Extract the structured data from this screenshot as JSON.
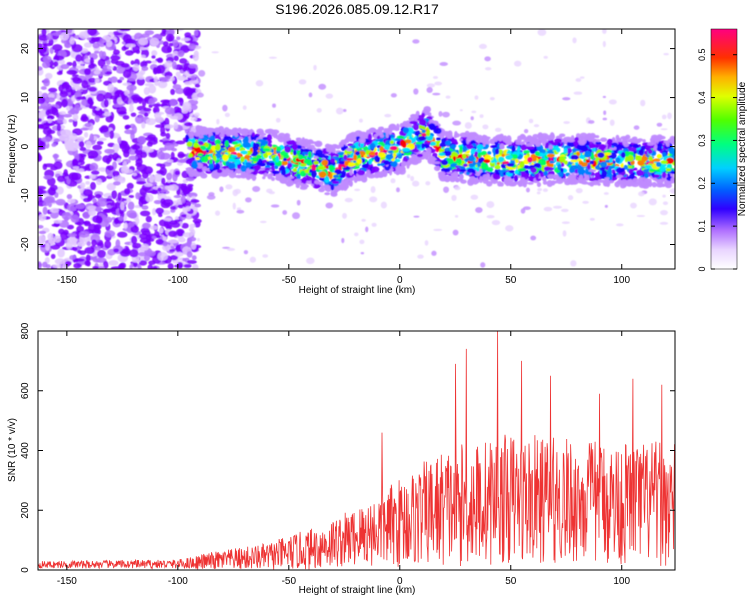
{
  "title": "S196.2026.085.09.12.R17",
  "chart_data": [
    {
      "type": "heatmap",
      "title": "S196.2026.085.09.12.R17",
      "xlabel": "Height of straight line (km)",
      "ylabel": "Frequency (Hz)",
      "xlim": [
        -163,
        124
      ],
      "ylim": [
        -25,
        24
      ],
      "xticks": [
        -150,
        -100,
        -50,
        0,
        50,
        100
      ],
      "yticks": [
        -20,
        -10,
        0,
        10,
        20
      ],
      "colorbar": {
        "label": "Normalized spectral amplitude",
        "range": [
          0,
          0.56
        ],
        "ticks": [
          0,
          0.1,
          0.2,
          0.3,
          0.4,
          0.5
        ],
        "colormap": [
          "#ffffff",
          "#e9d5ff",
          "#c08bff",
          "#7a00ff",
          "#1e00ff",
          "#0080ff",
          "#00e5ff",
          "#00ff60",
          "#a8ff00",
          "#ffff00",
          "#ff8000",
          "#ff0000",
          "#ff0080"
        ]
      },
      "band": {
        "start_km": -95,
        "center_freq_hz": [
          {
            "x": -95,
            "f": -1
          },
          {
            "x": -60,
            "f": -1.5
          },
          {
            "x": -40,
            "f": -4
          },
          {
            "x": -30,
            "f": -5
          },
          {
            "x": -20,
            "f": -2
          },
          {
            "x": 0,
            "f": -0.5
          },
          {
            "x": 12,
            "f": 3
          },
          {
            "x": 20,
            "f": -2
          },
          {
            "x": 50,
            "f": -3
          },
          {
            "x": 80,
            "f": -2.5
          },
          {
            "x": 100,
            "f": -3
          },
          {
            "x": 124,
            "f": -3
          }
        ],
        "half_width_hz": 5
      }
    },
    {
      "type": "line",
      "xlabel": "Height of straight line (km)",
      "ylabel": "SNR (10 * v/v)",
      "xlim": [
        -163,
        124
      ],
      "ylim": [
        0,
        800
      ],
      "xticks": [
        -150,
        -100,
        -50,
        0,
        50,
        100
      ],
      "yticks": [
        0,
        200,
        400,
        600,
        800
      ],
      "series": [
        {
          "name": "SNR",
          "color": "#ee3333",
          "envelope": [
            {
              "x": -163,
              "mean": 18,
              "amp": 12
            },
            {
              "x": -100,
              "mean": 20,
              "amp": 15
            },
            {
              "x": -85,
              "mean": 30,
              "amp": 30
            },
            {
              "x": -60,
              "mean": 45,
              "amp": 45
            },
            {
              "x": -40,
              "mean": 70,
              "amp": 70
            },
            {
              "x": -20,
              "mean": 110,
              "amp": 100
            },
            {
              "x": 0,
              "mean": 160,
              "amp": 150
            },
            {
              "x": 20,
              "mean": 210,
              "amp": 200
            },
            {
              "x": 50,
              "mean": 240,
              "amp": 220
            },
            {
              "x": 80,
              "mean": 230,
              "amp": 210
            },
            {
              "x": 124,
              "mean": 220,
              "amp": 210
            }
          ],
          "peaks": [
            {
              "x": -8,
              "y": 460
            },
            {
              "x": 30,
              "y": 740
            },
            {
              "x": 25,
              "y": 690
            },
            {
              "x": 44,
              "y": 800
            },
            {
              "x": 55,
              "y": 700
            },
            {
              "x": 68,
              "y": 650
            },
            {
              "x": 105,
              "y": 640
            },
            {
              "x": 118,
              "y": 620
            },
            {
              "x": 90,
              "y": 590
            }
          ]
        }
      ]
    }
  ]
}
